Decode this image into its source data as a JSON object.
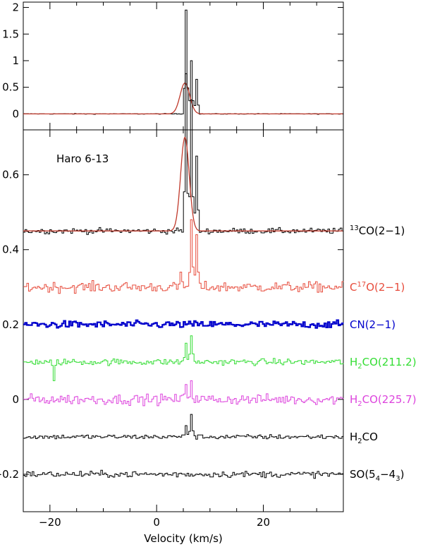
{
  "chart_data": [
    {
      "type": "line",
      "panel": "top",
      "x_range": [
        -25,
        35
      ],
      "ylim": [
        -0.3,
        2.1
      ],
      "y_ticks": [
        "0",
        "0.5",
        "1",
        "1.5",
        "2"
      ],
      "series": [
        {
          "color": "#000000",
          "style": "step",
          "baseline": 0,
          "peaks": [
            [
              5.3,
              1.95
            ],
            [
              6.3,
              1.0
            ],
            [
              7.3,
              0.65
            ]
          ],
          "description_values": "black spectrum, baseline ~0, sharp peaks near v=5-7 km/s"
        },
        {
          "color": "#c0392b",
          "style": "smooth",
          "baseline": 0,
          "gaussian": {
            "center": 5.3,
            "amplitude": 0.58,
            "width": 0.9
          }
        }
      ]
    },
    {
      "type": "line",
      "panel": "bottom",
      "annotation": "Haro 6-13",
      "x_range": [
        -25,
        35
      ],
      "ylim": [
        -0.3,
        0.72
      ],
      "x_ticks": [
        "−20",
        "0",
        "20"
      ],
      "y_ticks": [
        "−0.2",
        "0",
        "0.2",
        "0.4",
        "0.6"
      ],
      "xlabel": "Velocity (km/s)",
      "ylabel": "",
      "series": [
        {
          "label_pre": "13",
          "label_main": "CO(2−1)",
          "color": "#000000",
          "offset": 0.45,
          "noise": 0.007,
          "peaks": [
            [
              5.4,
              0.42
            ],
            [
              6.4,
              0.35
            ],
            [
              7.4,
              0.2
            ]
          ],
          "model": {
            "center": 5.3,
            "amplitude": 0.25,
            "width": 0.8,
            "color": "#c0392b"
          }
        },
        {
          "label_main": "C",
          "label_sup": "17",
          "label_post": "O(2−1)",
          "color": "#e74c3c",
          "offset": 0.3,
          "noise": 0.013,
          "peaks": [
            [
              4.3,
              0.04
            ],
            [
              6.3,
              0.18
            ],
            [
              7.3,
              0.14
            ]
          ]
        },
        {
          "label_main": "CN(2−1)",
          "color": "#0000cc",
          "offset": 0.2,
          "noise": 0.009,
          "thick": true,
          "peaks": []
        },
        {
          "label_main": "H",
          "label_sub": "2",
          "label_post": "CO(211.2)",
          "color": "#33dd33",
          "offset": 0.1,
          "noise": 0.008,
          "peaks": [
            [
              5.4,
              0.05
            ],
            [
              6.4,
              0.07
            ],
            [
              -19.5,
              -0.05
            ]
          ]
        },
        {
          "label_main": "H",
          "label_sub": "2",
          "label_post": "CO(225.7)",
          "color": "#dd44dd",
          "offset": 0.0,
          "noise": 0.013,
          "peaks": [
            [
              5.5,
              0.04
            ],
            [
              6.5,
              0.05
            ]
          ]
        },
        {
          "label_main": "H",
          "label_sub": "2",
          "label_post": "CO",
          "color": "#000000",
          "offset": -0.1,
          "noise": 0.006,
          "peaks": [
            [
              5.5,
              0.03
            ],
            [
              6.5,
              0.06
            ]
          ]
        },
        {
          "label_main": "SO(5",
          "label_sub": "4",
          "label_mid": "−4",
          "label_sub2": "3",
          "label_post": ")",
          "color": "#000000",
          "offset": -0.2,
          "noise": 0.008,
          "peaks": []
        }
      ]
    }
  ]
}
